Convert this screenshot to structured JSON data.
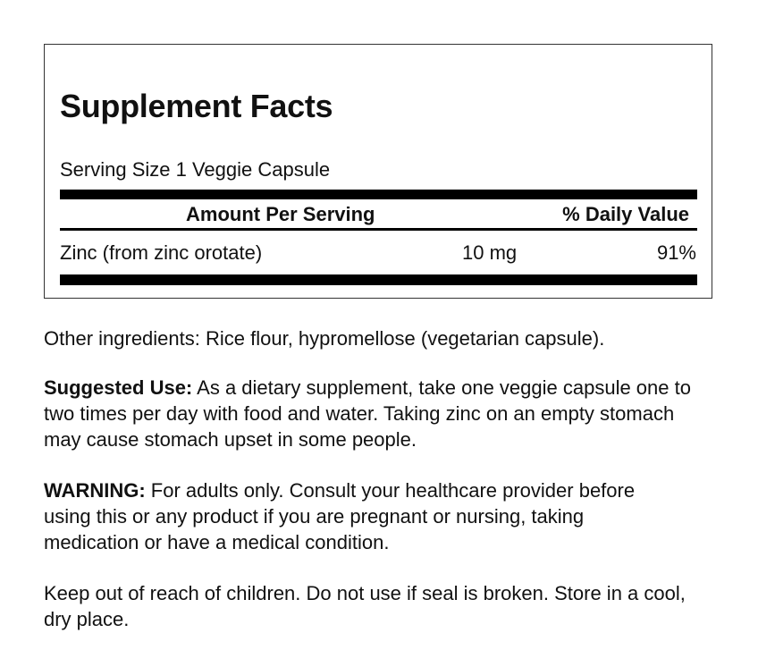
{
  "facts": {
    "title": "Supplement Facts",
    "serving_size": "Serving Size 1 Veggie Capsule",
    "header_amount": "Amount Per Serving",
    "header_dv": "% Daily Value",
    "rows": [
      {
        "name": "Zinc (from zinc orotate)",
        "amount": "10 mg",
        "dv": "91%"
      }
    ]
  },
  "other_ingredients": "Other ingredients: Rice flour, hypromellose (vegetarian capsule).",
  "suggested_use": {
    "label": "Suggested Use:",
    "text": " As a dietary supplement, take one veggie capsule one to two times per day with food and water. Taking zinc on an empty stomach may cause stomach upset in some people."
  },
  "warning": {
    "label": "WARNING:",
    "text": " For adults only. Consult your healthcare provider before using this or any product if you are pregnant or nursing, taking medication or have a medical condition."
  },
  "storage": "Keep out of reach of children. Do not use if seal is broken. Store in a cool, dry place."
}
